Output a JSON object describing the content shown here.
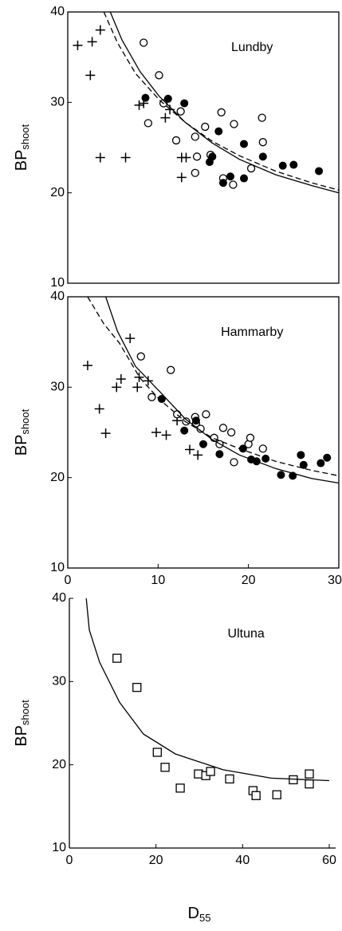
{
  "chart_data": [
    {
      "type": "scatter",
      "annotation": "Lundby",
      "ylabel": "BP",
      "ylabel_sub": "shoot",
      "xlim": [
        0,
        30
      ],
      "ylim": [
        10,
        40
      ],
      "yticks": [
        10,
        20,
        30,
        40
      ],
      "series": [
        {
          "marker": "plus",
          "color": "#000000",
          "x": [
            1.1,
            2.7,
            3.6,
            2.5,
            3.6,
            6.4,
            7.9,
            8.4,
            11.3,
            10.8,
            12.6,
            13.1,
            12.6
          ],
          "values": [
            36.3,
            36.7,
            38.0,
            33.0,
            23.9,
            23.9,
            29.7,
            29.9,
            29.2,
            28.3,
            23.9,
            23.9,
            21.7
          ]
        },
        {
          "marker": "open-circle",
          "color": "#000000",
          "x": [
            8.4,
            10.1,
            8.9,
            10.6,
            12.5,
            12.0,
            14.1,
            15.2,
            14.3,
            14.1,
            17.0,
            18.4,
            15.8,
            17.2,
            18.3,
            20.3,
            21.5,
            21.6
          ],
          "values": [
            36.6,
            33.0,
            27.7,
            29.9,
            29.0,
            25.8,
            26.2,
            27.3,
            24.0,
            22.2,
            28.9,
            27.6,
            24.2,
            21.6,
            20.9,
            22.7,
            28.3,
            25.6
          ]
        },
        {
          "marker": "filled-circle",
          "color": "#000000",
          "x": [
            8.6,
            11.1,
            12.9,
            15.7,
            16.0,
            16.7,
            17.2,
            18.0,
            19.5,
            19.5,
            21.6,
            23.8,
            25.0,
            27.8
          ],
          "values": [
            30.5,
            30.4,
            29.9,
            23.4,
            24.0,
            26.8,
            21.1,
            21.8,
            21.6,
            25.4,
            24.0,
            23.0,
            23.1,
            22.4
          ]
        },
        {
          "line": "solid",
          "color": "#000000",
          "x": [
            4.7,
            6.0,
            8.0,
            10.1,
            13.0,
            16.0,
            19.0,
            23.0,
            27.0,
            30.0
          ],
          "values": [
            40.0,
            36.9,
            33.4,
            30.7,
            27.8,
            25.5,
            23.7,
            22.0,
            20.8,
            20.0
          ]
        },
        {
          "line": "dashed",
          "color": "#000000",
          "x": [
            4.0,
            5.5,
            7.5,
            10.1,
            13.0,
            16.0,
            19.0,
            23.0,
            27.0,
            30.0
          ],
          "values": [
            40.0,
            36.6,
            33.2,
            30.3,
            27.8,
            25.7,
            24.1,
            22.4,
            21.1,
            20.3
          ]
        }
      ]
    },
    {
      "type": "scatter",
      "annotation": "Hammarby",
      "ylabel": "BP",
      "ylabel_sub": "shoot",
      "xlim": [
        0,
        30
      ],
      "ylim": [
        10,
        40
      ],
      "yticks": [
        10,
        20,
        30,
        40
      ],
      "xticks": [
        0,
        10,
        20,
        30
      ],
      "series": [
        {
          "marker": "plus",
          "color": "#000000",
          "x": [
            2.2,
            3.5,
            4.2,
            5.4,
            5.9,
            6.9,
            7.7,
            7.9,
            8.9,
            9.8,
            10.9,
            12.1,
            13.5,
            14.4
          ],
          "values": [
            32.4,
            27.6,
            24.9,
            30.0,
            30.9,
            35.4,
            30.0,
            31.1,
            30.7,
            25.0,
            24.7,
            26.3,
            23.1,
            22.5
          ]
        },
        {
          "marker": "open-circle",
          "color": "#000000",
          "x": [
            8.1,
            9.3,
            11.4,
            12.1,
            13.1,
            14.1,
            14.2,
            14.7,
            15.3,
            16.2,
            16.8,
            17.2,
            18.1,
            18.4,
            20.0,
            20.2,
            21.6
          ],
          "values": [
            33.4,
            28.9,
            31.9,
            27.0,
            26.2,
            26.7,
            26.0,
            25.4,
            27.0,
            24.4,
            23.7,
            25.5,
            25.0,
            21.7,
            23.7,
            24.4,
            23.2
          ]
        },
        {
          "marker": "filled-circle",
          "color": "#000000",
          "x": [
            10.4,
            12.9,
            14.2,
            15.0,
            16.8,
            19.4,
            20.3,
            20.9,
            21.9,
            23.6,
            24.9,
            25.8,
            26.1,
            28.0,
            28.7
          ],
          "values": [
            28.7,
            25.2,
            26.3,
            23.7,
            22.6,
            23.2,
            22.0,
            21.8,
            22.1,
            20.3,
            20.2,
            22.5,
            21.4,
            21.6,
            22.2
          ]
        },
        {
          "line": "solid",
          "color": "#000000",
          "x": [
            4.2,
            5.5,
            7.5,
            10.1,
            13.0,
            16.0,
            19.0,
            23.0,
            27.0,
            30.0
          ],
          "values": [
            40.0,
            36.2,
            32.3,
            29.6,
            26.5,
            24.2,
            22.5,
            21.0,
            19.9,
            19.4
          ]
        },
        {
          "line": "dashed",
          "color": "#000000",
          "x": [
            2.2,
            4.0,
            5.7,
            8.0,
            10.1,
            13.0,
            16.0,
            19.0,
            23.0,
            27.0,
            30.0
          ],
          "values": [
            40.0,
            37.0,
            34.9,
            31.0,
            28.7,
            26.2,
            24.4,
            23.2,
            21.8,
            20.8,
            20.2
          ]
        }
      ]
    },
    {
      "type": "scatter",
      "annotation": "Ultuna",
      "ylabel": "BP",
      "ylabel_sub": "shoot",
      "xlabel": "D",
      "xlabel_sub": "55",
      "xlim": [
        0,
        60
      ],
      "ylim": [
        10,
        40
      ],
      "yticks": [
        10,
        20,
        30,
        40
      ],
      "xticks": [
        0,
        20,
        40,
        60
      ],
      "series": [
        {
          "marker": "open-square",
          "color": "#000000",
          "x": [
            11.0,
            15.6,
            20.3,
            22.1,
            25.6,
            29.8,
            31.5,
            32.6,
            37.0,
            42.4,
            43.1,
            47.9,
            51.7,
            55.4,
            55.4
          ],
          "values": [
            32.8,
            29.3,
            21.5,
            19.7,
            17.2,
            18.9,
            18.7,
            19.2,
            18.3,
            16.9,
            16.3,
            16.4,
            18.2,
            18.9,
            17.7
          ]
        },
        {
          "line": "solid",
          "color": "#000000",
          "x": [
            3.9,
            4.6,
            7.0,
            11.6,
            17.1,
            24.5,
            35.5,
            46.6,
            60.0
          ],
          "values": [
            40.0,
            36.2,
            32.3,
            27.5,
            23.7,
            21.3,
            19.4,
            18.4,
            18.1
          ]
        }
      ]
    }
  ]
}
